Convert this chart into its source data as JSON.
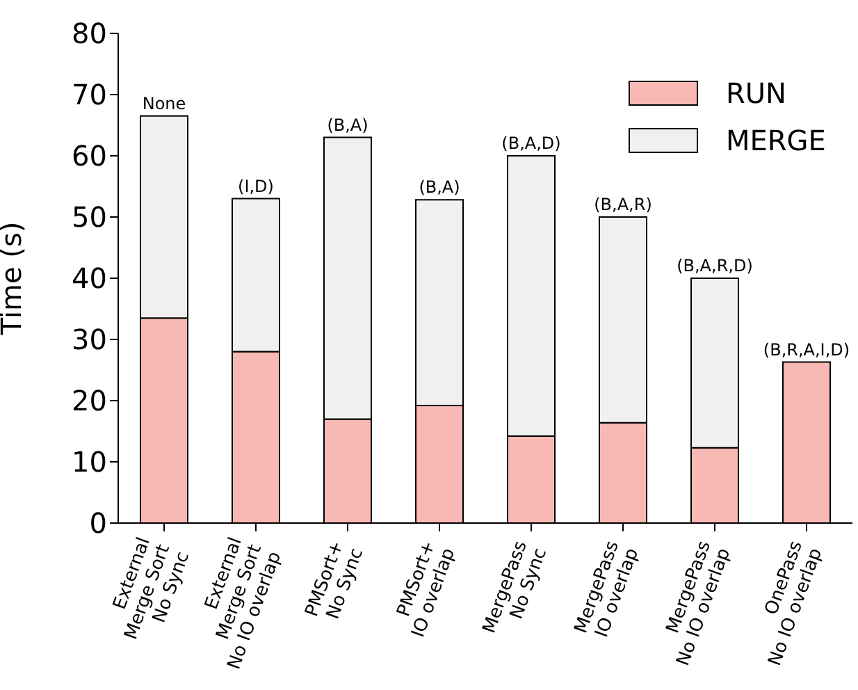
{
  "chart_data": {
    "type": "bar",
    "ylabel": "Time (s)",
    "categories": [
      "External\nMerge Sort\nNo Sync",
      "External\nMerge Sort\nNo IO overlap",
      "PMSort+\nNo Sync",
      "PMSort+\nIO overlap",
      "MergePass\nNo Sync",
      "MergePass\nIO overlap",
      "MergePass\nNo IO overlap",
      "OnePass\nNo IO overlap"
    ],
    "series": [
      {
        "name": "RUN",
        "color": "#f8b9b4",
        "values": [
          33.5,
          28,
          17,
          19.2,
          14.2,
          16.4,
          12.3,
          26.3
        ]
      },
      {
        "name": "MERGE",
        "color": "#f0f0f0",
        "values": [
          33,
          25,
          46,
          33.6,
          45.8,
          33.6,
          27.7,
          0
        ]
      }
    ],
    "stacked": true,
    "ylim": [
      0,
      80
    ],
    "yticks": [
      0,
      10,
      20,
      30,
      40,
      50,
      60,
      70,
      80
    ],
    "legend": "top right",
    "annotations": [
      {
        "text": "None",
        "x": "External\nMerge Sort\nNo Sync",
        "y": 66.5
      },
      {
        "text": "(I,D)",
        "x": "External\nMerge Sort\nNo IO overlap",
        "y": 53
      },
      {
        "text": "(B,A)",
        "x": "PMSort+\nNo Sync",
        "y": 63
      },
      {
        "text": "(B,A)",
        "x": "PMSort+\nIO overlap",
        "y": 52.8
      },
      {
        "text": "(B,A,D)",
        "x": "MergePass\nNo Sync",
        "y": 60
      },
      {
        "text": "(B,A,R)",
        "x": "MergePass\nIO overlap",
        "y": 50
      },
      {
        "text": "(B,A,R,D)",
        "x": "MergePass\nNo IO overlap",
        "y": 40
      },
      {
        "text": "(B,R,A,I,D)",
        "x": "OnePass\nNo IO overlap",
        "y": 26.3
      }
    ]
  }
}
